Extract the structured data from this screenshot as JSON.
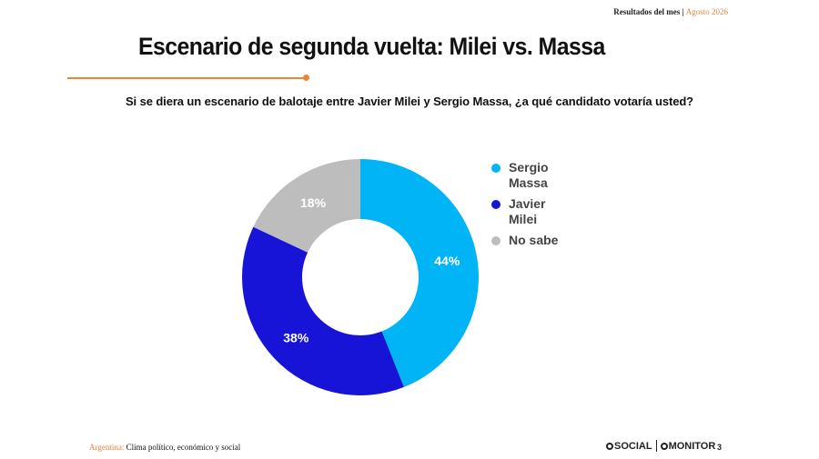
{
  "header": {
    "label": "Resultados del mes",
    "separator": "|",
    "month": "Agosto 2026"
  },
  "title": "Escenario de segunda vuelta: Milei vs. Massa",
  "question": "Si se diera un escenario de balotaje entre Javier Milei y Sergio Massa, ¿a qué candidato votaría usted?",
  "chart_data": {
    "type": "pie",
    "subtype": "donut",
    "categories": [
      "Sergio Massa",
      "Javier Milei",
      "No sabe"
    ],
    "values": [
      44,
      38,
      18
    ],
    "value_labels": [
      "44%",
      "38%",
      "18%"
    ],
    "unit": "%",
    "colors": [
      "#00b4f5",
      "#1714d8",
      "#bdbdbd"
    ],
    "legend": {
      "placement": "right",
      "items": [
        {
          "label": "Sergio Massa",
          "color": "#00b4f5"
        },
        {
          "label": "Javier Milei",
          "color": "#1714d8"
        },
        {
          "label": "No sabe",
          "color": "#bdbdbd"
        }
      ]
    }
  },
  "footer": {
    "country": "Argentina:",
    "subtitle": "Clima político, económico y social",
    "logo_left": "SOCIAL",
    "logo_right": "MONITOR",
    "page": "3"
  },
  "colors": {
    "accent": "#e8863a"
  }
}
